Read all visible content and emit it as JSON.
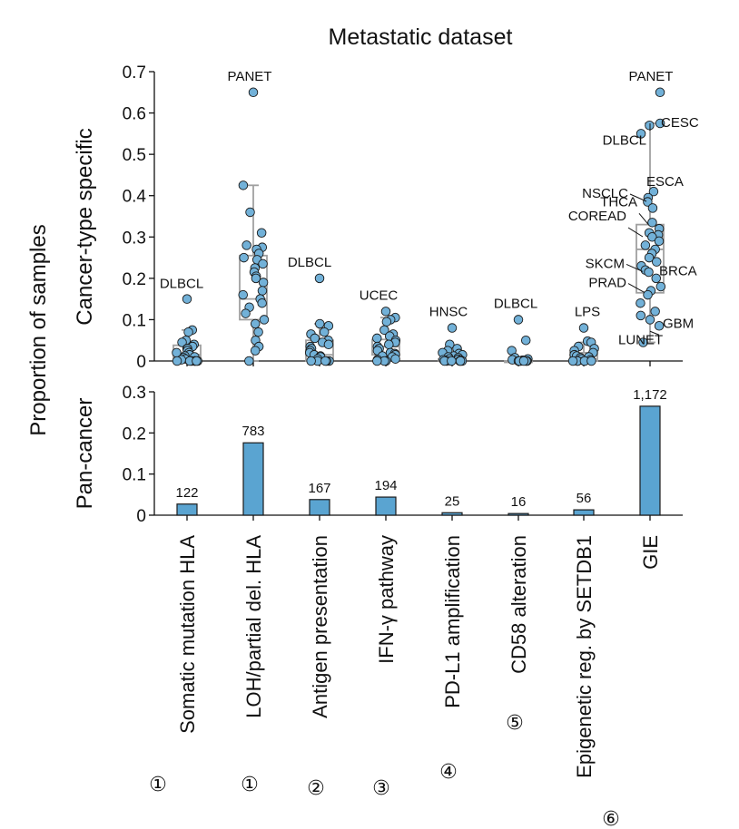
{
  "chart_data": {
    "title": "Metastatic dataset",
    "ylabel": "Proportion of samples",
    "categories": [
      "Somatic mutation HLA",
      "LOH/partial del. HLA",
      "Antigen presentation",
      "IFN-γ pathway",
      "PD-L1 amplification",
      "CD58 alteration",
      "Epigenetic reg. by SETDB1",
      "GIE"
    ],
    "category_markers": [
      "①",
      "①",
      "②",
      "③",
      "④",
      "⑤",
      "⑥",
      ""
    ],
    "panels": [
      {
        "type": "box-strip",
        "ylabel": "Cancer-type specific",
        "ylim": [
          0,
          0.7
        ],
        "yticks": [
          0,
          0.1,
          0.2,
          0.3,
          0.4,
          0.5,
          0.6,
          0.7
        ],
        "ytick_labels": [
          "0",
          "0.1",
          "0.2",
          "0.3",
          "0.4",
          "0.5",
          "0.6",
          "0.7"
        ],
        "boxes": [
          {
            "q1": 0.0,
            "median": 0.015,
            "q3": 0.038,
            "wlow": 0.0,
            "whigh": 0.075,
            "points": [
              0.15,
              0.075,
              0.07,
              0.05,
              0.045,
              0.04,
              0.035,
              0.03,
              0.03,
              0.025,
              0.02,
              0.02,
              0.015,
              0.012,
              0.01,
              0.008,
              0.005,
              0.003,
              0.0,
              0.0,
              0.0,
              0.0,
              0.0,
              0.0,
              0.0
            ],
            "labels": [
              {
                "text": "DLBCL",
                "value": 0.15
              }
            ]
          },
          {
            "q1": 0.1,
            "median": 0.15,
            "q3": 0.255,
            "wlow": 0.0,
            "whigh": 0.425,
            "points": [
              0.65,
              0.425,
              0.36,
              0.31,
              0.28,
              0.275,
              0.27,
              0.26,
              0.25,
              0.245,
              0.235,
              0.225,
              0.215,
              0.205,
              0.2,
              0.19,
              0.17,
              0.16,
              0.15,
              0.14,
              0.13,
              0.115,
              0.1,
              0.09,
              0.07,
              0.05,
              0.035,
              0.025,
              0.0
            ],
            "labels": [
              {
                "text": "PANET",
                "value": 0.65
              }
            ]
          },
          {
            "q1": 0.0,
            "median": 0.015,
            "q3": 0.05,
            "wlow": 0.0,
            "whigh": 0.09,
            "points": [
              0.2,
              0.09,
              0.085,
              0.07,
              0.065,
              0.055,
              0.05,
              0.045,
              0.04,
              0.035,
              0.03,
              0.025,
              0.02,
              0.015,
              0.012,
              0.01,
              0.005,
              0.0,
              0.0,
              0.0,
              0.0,
              0.0
            ],
            "labels": [
              {
                "text": "DLBCL",
                "value": 0.2
              }
            ]
          },
          {
            "q1": 0.015,
            "median": 0.035,
            "q3": 0.052,
            "wlow": 0.0,
            "whigh": 0.105,
            "points": [
              0.12,
              0.105,
              0.1,
              0.095,
              0.075,
              0.065,
              0.06,
              0.055,
              0.05,
              0.045,
              0.04,
              0.035,
              0.03,
              0.025,
              0.02,
              0.018,
              0.015,
              0.012,
              0.01,
              0.005,
              0.003,
              0.0,
              0.0,
              0.0
            ],
            "labels": [
              {
                "text": "UCEC",
                "value": 0.12
              }
            ]
          },
          {
            "q1": 0.0,
            "median": 0.0,
            "q3": 0.005,
            "wlow": 0.0,
            "whigh": 0.015,
            "points": [
              0.08,
              0.04,
              0.03,
              0.025,
              0.02,
              0.018,
              0.015,
              0.012,
              0.01,
              0.008,
              0.005,
              0.004,
              0.003,
              0.002,
              0.0,
              0.0,
              0.0,
              0.0,
              0.0,
              0.0
            ],
            "labels": [
              {
                "text": "HNSC",
                "value": 0.08
              }
            ]
          },
          {
            "q1": 0.0,
            "median": 0.0,
            "q3": 0.0,
            "wlow": 0.0,
            "whigh": 0.0,
            "points": [
              0.1,
              0.05,
              0.025,
              0.008,
              0.005,
              0.003,
              0.002,
              0.0,
              0.0,
              0.0,
              0.0,
              0.0,
              0.0
            ],
            "labels": [
              {
                "text": "DLBCL",
                "value": 0.1
              }
            ]
          },
          {
            "q1": 0.0,
            "median": 0.005,
            "q3": 0.02,
            "wlow": 0.0,
            "whigh": 0.045,
            "points": [
              0.08,
              0.048,
              0.045,
              0.035,
              0.03,
              0.025,
              0.02,
              0.015,
              0.012,
              0.01,
              0.008,
              0.005,
              0.003,
              0.0,
              0.0,
              0.0,
              0.0,
              0.0,
              0.0
            ],
            "labels": [
              {
                "text": "LPS",
                "value": 0.08
              }
            ]
          },
          {
            "q1": 0.165,
            "median": 0.27,
            "q3": 0.33,
            "wlow": 0.045,
            "whigh": 0.575,
            "points": [
              0.65,
              0.575,
              0.57,
              0.55,
              0.41,
              0.395,
              0.385,
              0.37,
              0.335,
              0.32,
              0.31,
              0.305,
              0.3,
              0.29,
              0.28,
              0.27,
              0.26,
              0.25,
              0.24,
              0.23,
              0.22,
              0.215,
              0.2,
              0.18,
              0.17,
              0.16,
              0.14,
              0.12,
              0.11,
              0.1,
              0.085,
              0.045
            ],
            "labels": [
              {
                "text": "PANET",
                "value": 0.65
              },
              {
                "text": "CESC",
                "value": 0.575
              },
              {
                "text": "DLBCL",
                "value": 0.55
              },
              {
                "text": "ESCA",
                "value": 0.41
              },
              {
                "text": "NSCLC",
                "value": 0.395
              },
              {
                "text": "THCA",
                "value": 0.335
              },
              {
                "text": "COREAD",
                "value": 0.305
              },
              {
                "text": "SKCM",
                "value": 0.225
              },
              {
                "text": "BRCA",
                "value": 0.22
              },
              {
                "text": "PRAD",
                "value": 0.17
              },
              {
                "text": "GBM",
                "value": 0.085
              },
              {
                "text": "LUNET",
                "value": 0.045
              }
            ]
          }
        ]
      },
      {
        "type": "bar",
        "ylabel": "Pan-cancer",
        "ylim": [
          0,
          0.3
        ],
        "yticks": [
          0,
          0.1,
          0.2,
          0.3
        ],
        "ytick_labels": [
          "0",
          "0.1",
          "0.2",
          "0.3"
        ],
        "values": [
          0.027,
          0.176,
          0.038,
          0.044,
          0.006,
          0.004,
          0.013,
          0.265
        ],
        "counts": [
          "122",
          "783",
          "167",
          "194",
          "25",
          "16",
          "56",
          "1,172"
        ]
      }
    ],
    "colors": {
      "marker_fill": "#72b1d8",
      "bar_fill": "#5aa4d1",
      "box_stroke": "#a0a0a0",
      "edge": "#1a1a1a"
    }
  }
}
